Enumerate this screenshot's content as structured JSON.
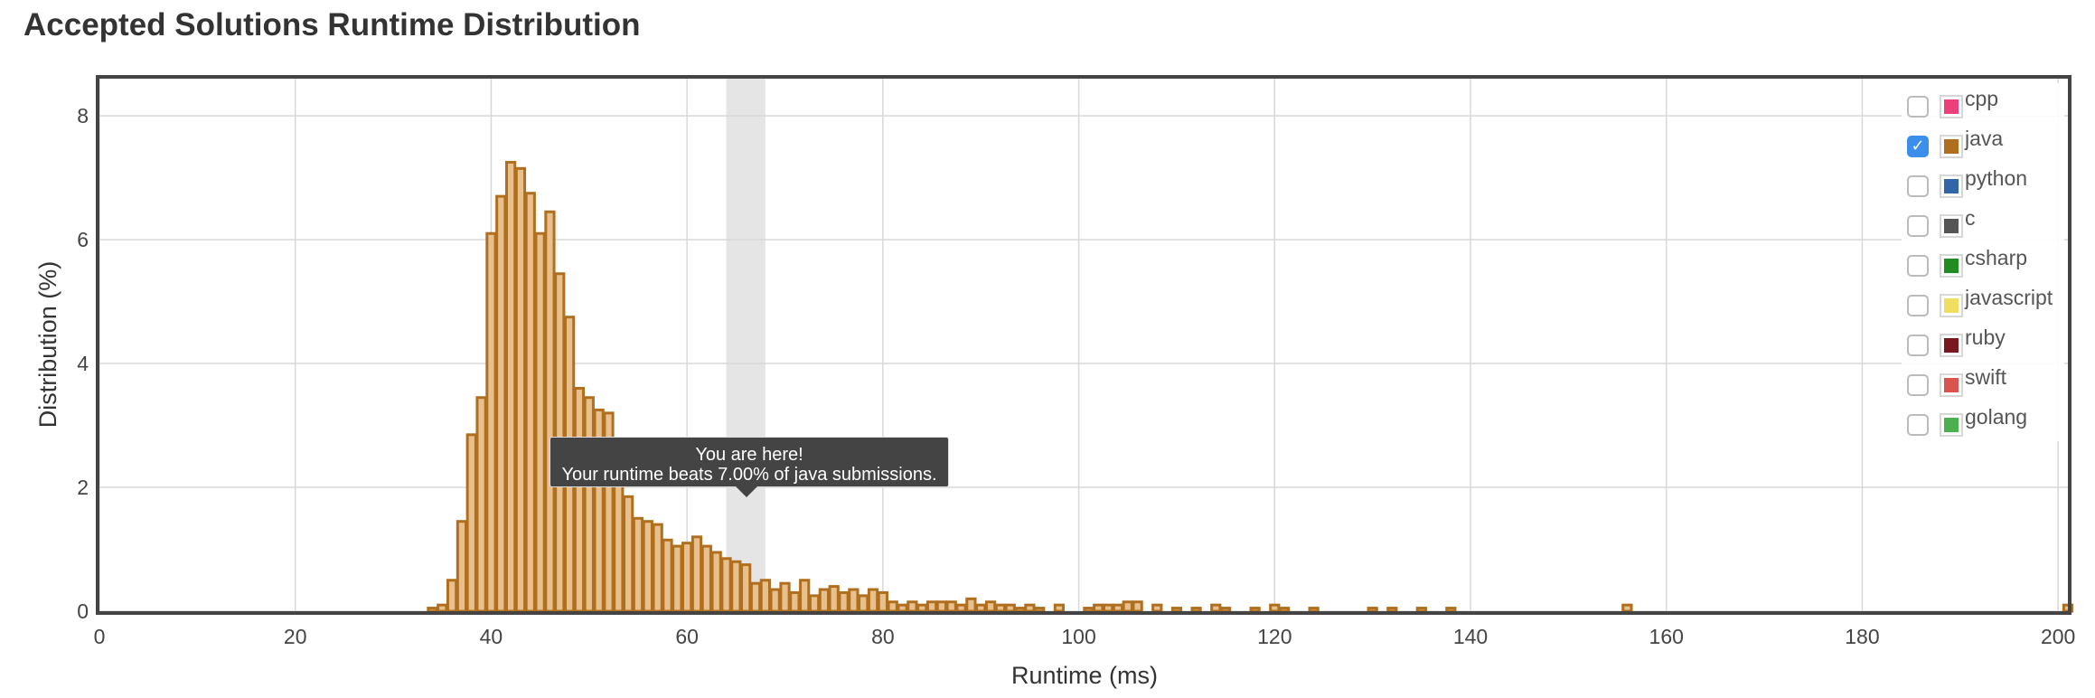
{
  "page": {
    "title": "Accepted Solutions Runtime Distribution"
  },
  "tooltip": {
    "line1": "You are here!",
    "line2": "Your runtime beats 7.00% of java submissions."
  },
  "legend": {
    "items": [
      {
        "label": "cpp",
        "color": "#ec407a",
        "checked": false
      },
      {
        "label": "java",
        "color": "#b06f1e",
        "checked": true
      },
      {
        "label": "python",
        "color": "#3366a8",
        "checked": false
      },
      {
        "label": "c",
        "color": "#555555",
        "checked": false
      },
      {
        "label": "csharp",
        "color": "#228b22",
        "checked": false
      },
      {
        "label": "javascript",
        "color": "#f0de60",
        "checked": false
      },
      {
        "label": "ruby",
        "color": "#7a1820",
        "checked": false
      },
      {
        "label": "swift",
        "color": "#d9534f",
        "checked": false
      },
      {
        "label": "golang",
        "color": "#4caf50",
        "checked": false
      }
    ]
  },
  "chart_data": {
    "type": "bar",
    "xlabel": "Runtime (ms)",
    "ylabel": "Distribution (%)",
    "xlim": [
      0,
      201
    ],
    "ylim": [
      0,
      8.6
    ],
    "x_ticks": [
      0,
      20,
      40,
      60,
      80,
      100,
      120,
      140,
      160,
      180,
      200
    ],
    "y_ticks": [
      0,
      2,
      4,
      6,
      8
    ],
    "grid": true,
    "bin_width_ms": 1,
    "highlight_band": {
      "start": 64,
      "end": 68
    },
    "series": [
      {
        "name": "java",
        "color": "#b06f1e",
        "fill": "#e8c08d",
        "bars": [
          {
            "x": 34,
            "y": 0.05
          },
          {
            "x": 35,
            "y": 0.1
          },
          {
            "x": 36,
            "y": 0.5
          },
          {
            "x": 37,
            "y": 1.45
          },
          {
            "x": 38,
            "y": 2.85
          },
          {
            "x": 39,
            "y": 3.45
          },
          {
            "x": 40,
            "y": 6.1
          },
          {
            "x": 41,
            "y": 6.7
          },
          {
            "x": 42,
            "y": 7.25
          },
          {
            "x": 43,
            "y": 7.15
          },
          {
            "x": 44,
            "y": 6.75
          },
          {
            "x": 45,
            "y": 6.1
          },
          {
            "x": 46,
            "y": 6.45
          },
          {
            "x": 47,
            "y": 5.45
          },
          {
            "x": 48,
            "y": 4.75
          },
          {
            "x": 49,
            "y": 3.6
          },
          {
            "x": 50,
            "y": 3.45
          },
          {
            "x": 51,
            "y": 3.25
          },
          {
            "x": 52,
            "y": 3.2
          },
          {
            "x": 53,
            "y": 2.45
          },
          {
            "x": 54,
            "y": 1.85
          },
          {
            "x": 55,
            "y": 1.5
          },
          {
            "x": 56,
            "y": 1.45
          },
          {
            "x": 57,
            "y": 1.4
          },
          {
            "x": 58,
            "y": 1.15
          },
          {
            "x": 59,
            "y": 1.05
          },
          {
            "x": 60,
            "y": 1.1
          },
          {
            "x": 61,
            "y": 1.2
          },
          {
            "x": 62,
            "y": 1.05
          },
          {
            "x": 63,
            "y": 0.95
          },
          {
            "x": 64,
            "y": 0.85
          },
          {
            "x": 65,
            "y": 0.8
          },
          {
            "x": 66,
            "y": 0.75
          },
          {
            "x": 67,
            "y": 0.45
          },
          {
            "x": 68,
            "y": 0.5
          },
          {
            "x": 69,
            "y": 0.35
          },
          {
            "x": 70,
            "y": 0.45
          },
          {
            "x": 71,
            "y": 0.3
          },
          {
            "x": 72,
            "y": 0.5
          },
          {
            "x": 73,
            "y": 0.25
          },
          {
            "x": 74,
            "y": 0.35
          },
          {
            "x": 75,
            "y": 0.4
          },
          {
            "x": 76,
            "y": 0.3
          },
          {
            "x": 77,
            "y": 0.35
          },
          {
            "x": 78,
            "y": 0.25
          },
          {
            "x": 79,
            "y": 0.35
          },
          {
            "x": 80,
            "y": 0.3
          },
          {
            "x": 81,
            "y": 0.15
          },
          {
            "x": 82,
            "y": 0.1
          },
          {
            "x": 83,
            "y": 0.15
          },
          {
            "x": 84,
            "y": 0.1
          },
          {
            "x": 85,
            "y": 0.15
          },
          {
            "x": 86,
            "y": 0.15
          },
          {
            "x": 87,
            "y": 0.15
          },
          {
            "x": 88,
            "y": 0.1
          },
          {
            "x": 89,
            "y": 0.2
          },
          {
            "x": 90,
            "y": 0.1
          },
          {
            "x": 91,
            "y": 0.15
          },
          {
            "x": 92,
            "y": 0.1
          },
          {
            "x": 93,
            "y": 0.1
          },
          {
            "x": 94,
            "y": 0.05
          },
          {
            "x": 95,
            "y": 0.1
          },
          {
            "x": 96,
            "y": 0.05
          },
          {
            "x": 98,
            "y": 0.1
          },
          {
            "x": 101,
            "y": 0.05
          },
          {
            "x": 102,
            "y": 0.1
          },
          {
            "x": 103,
            "y": 0.1
          },
          {
            "x": 104,
            "y": 0.1
          },
          {
            "x": 105,
            "y": 0.15
          },
          {
            "x": 106,
            "y": 0.15
          },
          {
            "x": 108,
            "y": 0.1
          },
          {
            "x": 110,
            "y": 0.05
          },
          {
            "x": 112,
            "y": 0.05
          },
          {
            "x": 114,
            "y": 0.1
          },
          {
            "x": 115,
            "y": 0.05
          },
          {
            "x": 118,
            "y": 0.05
          },
          {
            "x": 120,
            "y": 0.1
          },
          {
            "x": 121,
            "y": 0.05
          },
          {
            "x": 124,
            "y": 0.05
          },
          {
            "x": 130,
            "y": 0.05
          },
          {
            "x": 132,
            "y": 0.05
          },
          {
            "x": 135,
            "y": 0.05
          },
          {
            "x": 138,
            "y": 0.05
          },
          {
            "x": 156,
            "y": 0.1
          },
          {
            "x": 201,
            "y": 0.1
          }
        ]
      }
    ]
  }
}
